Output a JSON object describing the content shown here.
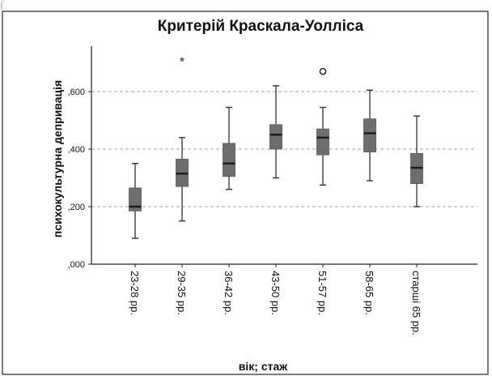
{
  "chart_data": {
    "type": "boxplot",
    "title": "Критерій Краскала-Уолліса",
    "xlabel": "вік; стаж",
    "ylabel": "психокультурна депривація",
    "ylim": [
      0.0,
      0.76
    ],
    "yticks": [
      0.0,
      0.2,
      0.4,
      0.6
    ],
    "ytick_labels": [
      ",000",
      ",200",
      ",400",
      ",600"
    ],
    "grid": "horizontal dashed",
    "categories": [
      "23-28 рр.",
      "29-35 рр.",
      "36-42 рр.",
      "43-50 рр.",
      "51-57 рр.",
      "58-65 рр.",
      "старші 65 рр."
    ],
    "boxes": [
      {
        "min": 0.09,
        "q1": 0.185,
        "median": 0.2,
        "q3": 0.265,
        "max": 0.35,
        "outliers": [],
        "extremes": []
      },
      {
        "min": 0.15,
        "q1": 0.27,
        "median": 0.315,
        "q3": 0.365,
        "max": 0.44,
        "outliers": [],
        "extremes": [
          0.705
        ]
      },
      {
        "min": 0.26,
        "q1": 0.305,
        "median": 0.35,
        "q3": 0.42,
        "max": 0.545,
        "outliers": [],
        "extremes": []
      },
      {
        "min": 0.3,
        "q1": 0.4,
        "median": 0.45,
        "q3": 0.485,
        "max": 0.62,
        "outliers": [],
        "extremes": []
      },
      {
        "min": 0.275,
        "q1": 0.38,
        "median": 0.44,
        "q3": 0.47,
        "max": 0.545,
        "outliers": [
          0.67
        ],
        "extremes": []
      },
      {
        "min": 0.29,
        "q1": 0.39,
        "median": 0.455,
        "q3": 0.505,
        "max": 0.605,
        "outliers": [],
        "extremes": []
      },
      {
        "min": 0.2,
        "q1": 0.28,
        "median": 0.335,
        "q3": 0.385,
        "max": 0.515,
        "outliers": [],
        "extremes": []
      }
    ],
    "colors": {
      "box": "#6e6e6e",
      "median": "#1a1a1a",
      "whisker": "#333333",
      "grid": "#a0a0a0",
      "text": "#111111"
    }
  }
}
